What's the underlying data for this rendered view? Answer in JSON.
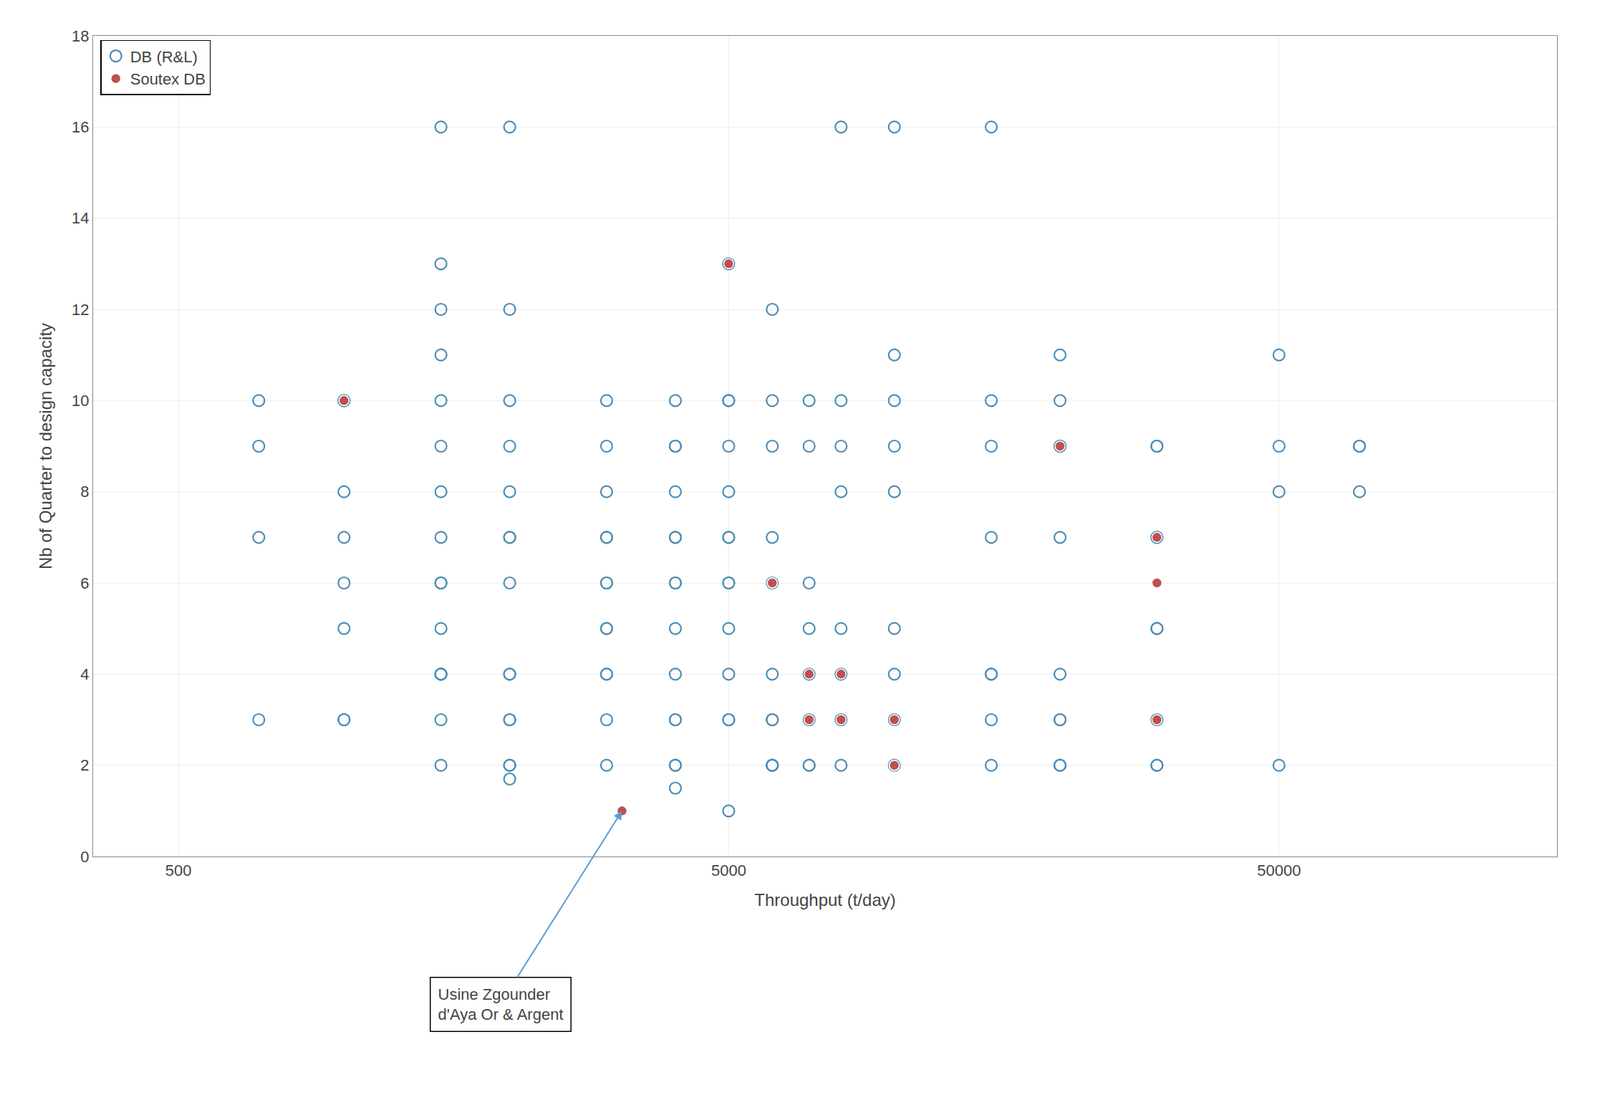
{
  "chart_data": {
    "type": "scatter",
    "title": "",
    "xlabel": "Throughput (t/day)",
    "ylabel": "Nb of Quarter to design capacity",
    "log": "x",
    "xlim": [
      350,
      160000
    ],
    "xticks": [
      500,
      5000,
      50000
    ],
    "ylim": [
      0,
      18
    ],
    "yticks": [
      0,
      2,
      4,
      6,
      8,
      10,
      12,
      14,
      16,
      18
    ],
    "grid": true,
    "legend": "upper left",
    "series": [
      {
        "name": "DB (R&L)",
        "color": "#4e8db5",
        "marker": "open",
        "x": [
          700,
          700,
          700,
          700,
          1000,
          1000,
          1000,
          1000,
          1000,
          1000,
          1000,
          1000,
          1500,
          1500,
          1500,
          1500,
          1500,
          1500,
          1500,
          1500,
          1500,
          1500,
          1500,
          1500,
          1500,
          1500,
          1500,
          1500,
          2000,
          2000,
          2000,
          2000,
          2000,
          2000,
          2000,
          2000,
          2000,
          2000,
          2000,
          2000,
          2000,
          2000,
          2000,
          3000,
          3000,
          3000,
          3000,
          3000,
          3000,
          3000,
          3000,
          3000,
          3000,
          3000,
          3000,
          3000,
          4000,
          4000,
          4000,
          4000,
          4000,
          4000,
          4000,
          4000,
          4000,
          4000,
          4000,
          4000,
          4000,
          4000,
          4000,
          5000,
          5000,
          5000,
          5000,
          5000,
          5000,
          5000,
          5000,
          5000,
          5000,
          5000,
          5000,
          5000,
          5000,
          6000,
          6000,
          6000,
          6000,
          6000,
          6000,
          6000,
          6000,
          6000,
          6000,
          6000,
          7000,
          7000,
          7000,
          7000,
          7000,
          7000,
          7000,
          7000,
          8000,
          8000,
          8000,
          8000,
          8000,
          8000,
          8000,
          8000,
          10000,
          10000,
          10000,
          10000,
          10000,
          10000,
          10000,
          10000,
          10000,
          15000,
          15000,
          15000,
          15000,
          15000,
          15000,
          15000,
          15000,
          20000,
          20000,
          20000,
          20000,
          20000,
          20000,
          20000,
          20000,
          20000,
          20000,
          30000,
          30000,
          30000,
          30000,
          30000,
          30000,
          30000,
          30000,
          30000,
          50000,
          50000,
          50000,
          50000,
          70000,
          70000,
          70000
        ],
        "values": [
          10,
          9,
          7,
          3,
          10,
          10,
          8,
          7,
          6,
          5,
          3,
          3,
          16,
          13,
          12,
          11,
          10,
          9,
          8,
          7,
          6,
          6,
          5,
          4,
          4,
          4,
          3,
          2,
          16,
          12,
          10,
          9,
          8,
          7,
          7,
          6,
          4,
          4,
          3,
          3,
          2,
          2,
          1.7,
          10,
          9,
          8,
          7,
          7,
          6,
          6,
          5,
          5,
          4,
          4,
          3,
          2,
          10,
          9,
          9,
          8,
          7,
          7,
          6,
          6,
          5,
          4,
          3,
          3,
          2,
          2,
          1.5,
          13,
          10,
          10,
          9,
          8,
          7,
          7,
          6,
          6,
          5,
          4,
          3,
          3,
          1,
          12,
          10,
          9,
          7,
          6,
          4,
          3,
          3,
          2,
          2,
          2,
          10,
          9,
          6,
          5,
          4,
          3,
          2,
          2,
          16,
          10,
          9,
          8,
          5,
          4,
          3,
          2,
          16,
          11,
          10,
          9,
          8,
          5,
          4,
          3,
          2,
          16,
          10,
          9,
          7,
          4,
          4,
          3,
          2,
          11,
          10,
          9,
          9,
          7,
          4,
          3,
          3,
          2,
          2,
          9,
          9,
          7,
          7,
          5,
          5,
          3,
          2,
          2,
          11,
          9,
          8,
          2,
          9,
          9,
          8
        ]
      },
      {
        "name": "Soutex DB",
        "color": "#c0504d",
        "marker": "filled",
        "x": [
          1000,
          1000,
          3200,
          5000,
          6000,
          6000,
          7000,
          7000,
          8000,
          8000,
          10000,
          10000,
          10000,
          20000,
          30000,
          30000,
          30000
        ],
        "values": [
          10,
          10,
          1,
          13,
          6,
          6,
          4,
          3,
          4,
          3,
          3,
          2,
          2,
          9,
          7,
          6,
          3
        ]
      }
    ],
    "annotations": [
      {
        "text": "Usine Zgounder\nd'Aya Or & Argent",
        "x": 3200,
        "y": 1
      }
    ]
  }
}
